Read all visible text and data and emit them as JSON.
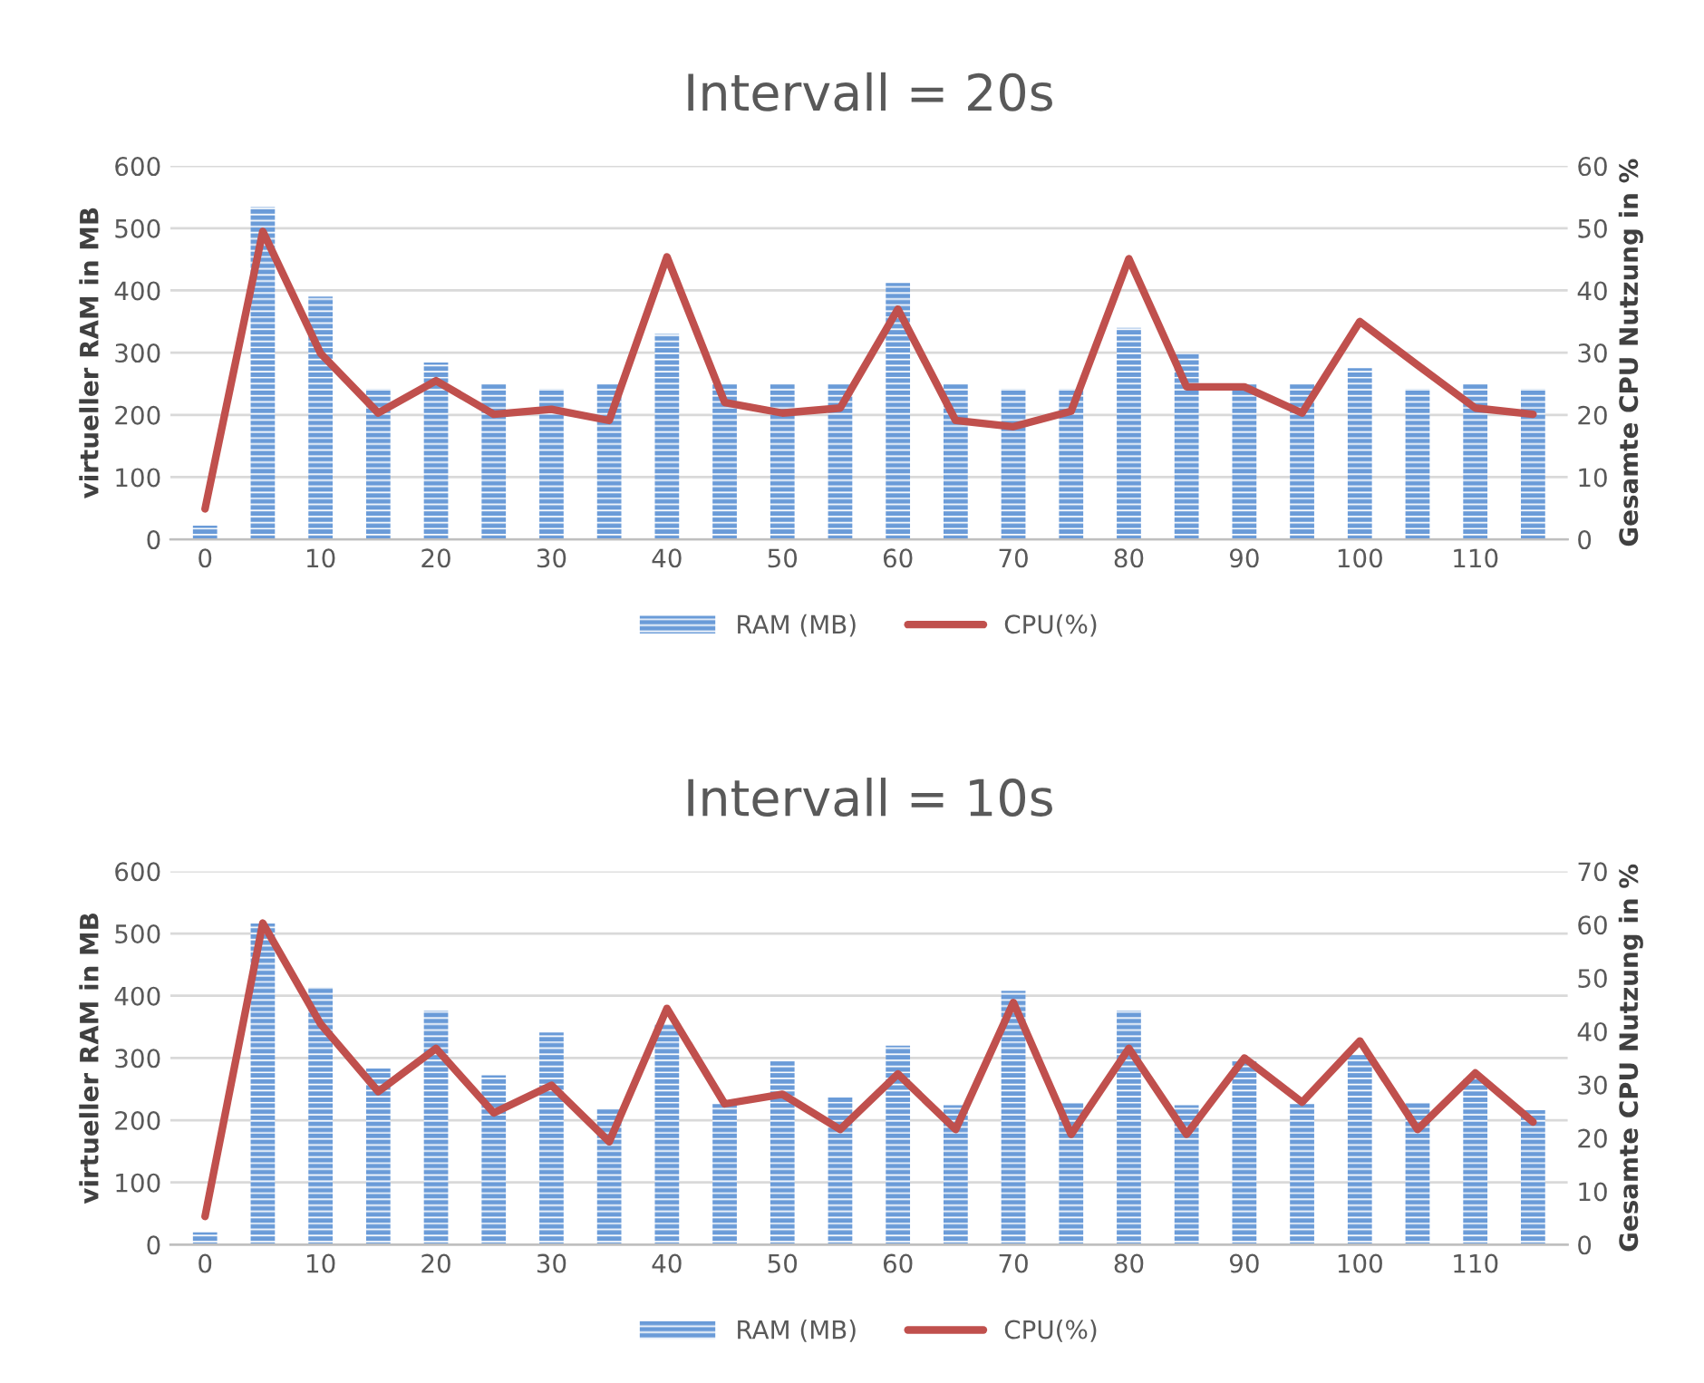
{
  "chart_data": [
    {
      "type": "bar",
      "title": "Intervall = 20s",
      "ylabel": "virtueller RAM in MB",
      "y2label": "Gesamte CPU Nutzung in %",
      "categories": [
        "0",
        null,
        "10",
        null,
        "20",
        null,
        "30",
        null,
        "40",
        null,
        "50",
        null,
        "60",
        null,
        "70",
        null,
        "80",
        null,
        "90",
        null,
        "100",
        null,
        "110",
        null
      ],
      "series": [
        {
          "name": "RAM (MB)",
          "color": "#6a9bd8",
          "values": [
            22,
            534,
            390,
            242,
            284,
            250,
            242,
            250,
            330,
            250,
            250,
            250,
            412,
            250,
            242,
            242,
            340,
            299,
            250,
            250,
            275,
            242,
            250,
            242
          ]
        },
        {
          "name": "CPU(%)",
          "type": "line",
          "axis": "y2",
          "color": "#c0504d",
          "values": [
            4.9,
            49.5,
            29.9,
            20.3,
            25.5,
            20.1,
            20.9,
            19.1,
            45.4,
            22,
            20.3,
            21.1,
            37,
            19.1,
            18.1,
            20.6,
            45.1,
            24.5,
            24.5,
            20.3,
            35,
            28,
            21.1,
            20.1
          ]
        }
      ],
      "ylim": [
        0,
        600
      ],
      "yticks": [
        0,
        100,
        200,
        300,
        400,
        500,
        600
      ],
      "y2lim": [
        0,
        60
      ],
      "y2ticks": [
        0,
        10,
        20,
        30,
        40,
        50,
        60
      ],
      "grid": "y",
      "legend": "bottom"
    },
    {
      "type": "bar",
      "title": "Intervall = 10s",
      "ylabel": "virtueller RAM in MB",
      "y2label": "Gesamte CPU Nutzung in %",
      "categories": [
        "0",
        null,
        "10",
        null,
        "20",
        null,
        "30",
        null,
        "40",
        null,
        "50",
        null,
        "60",
        null,
        "70",
        null,
        "80",
        null,
        "90",
        null,
        "100",
        null,
        "110",
        null
      ],
      "series": [
        {
          "name": "RAM (MB)",
          "color": "#6a9bd8",
          "values": [
            20,
            516,
            413,
            283,
            376,
            272,
            341,
            219,
            354,
            226,
            295,
            237,
            320,
            224,
            408,
            228,
            376,
            224,
            295,
            226,
            305,
            228,
            268,
            216
          ]
        },
        {
          "name": "CPU(%)",
          "type": "line",
          "axis": "y2",
          "color": "#c0504d",
          "values": [
            5.3,
            60.3,
            41.4,
            28.7,
            36.8,
            24.7,
            29.9,
            19.3,
            44.3,
            26.4,
            28.2,
            21.6,
            32,
            21.6,
            45.4,
            20.7,
            36.8,
            20.7,
            35,
            26.7,
            38.2,
            21.6,
            32.2,
            23
          ]
        }
      ],
      "ylim": [
        0,
        600
      ],
      "yticks": [
        0,
        100,
        200,
        300,
        400,
        500,
        600
      ],
      "y2lim": [
        0,
        70
      ],
      "y2ticks": [
        0,
        10,
        20,
        30,
        40,
        50,
        60,
        70
      ],
      "grid": "y",
      "legend": "bottom"
    }
  ]
}
